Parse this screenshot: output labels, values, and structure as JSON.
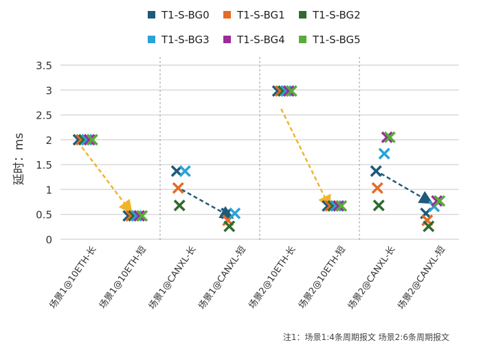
{
  "chart_data": {
    "type": "scatter",
    "ylabel": "延时：ms",
    "ylim": [
      0,
      3.5
    ],
    "yticks": [
      0,
      0.5,
      1,
      1.5,
      2,
      2.5,
      3,
      3.5
    ],
    "ytick_labels": [
      "0",
      "0.5",
      "1",
      "1.5",
      "2",
      "2.5",
      "3",
      "3.5"
    ],
    "grid": true,
    "legend_position": "top-center",
    "marker": "x",
    "categories": [
      "场景1@10ETH-长",
      "场景1@10ETH-短",
      "场景1@CANXL-长",
      "场景1@CANXL-短",
      "场景2@10ETH-长",
      "场景2@10ETH-短",
      "场景2@CANXL-长",
      "场景2@CANXL-短"
    ],
    "series": [
      {
        "name": "T1-S-BG0",
        "color": "#1f5a7a",
        "values": [
          2.0,
          0.47,
          1.37,
          0.52,
          2.98,
          0.67,
          1.37,
          0.52
        ]
      },
      {
        "name": "T1-S-BG1",
        "color": "#e36c28",
        "values": [
          2.0,
          0.47,
          1.03,
          0.38,
          2.98,
          0.67,
          1.03,
          0.38
        ]
      },
      {
        "name": "T1-S-BG2",
        "color": "#2e6b2e",
        "values": [
          2.0,
          0.47,
          0.68,
          0.26,
          2.98,
          0.67,
          0.68,
          0.26
        ]
      },
      {
        "name": "T1-S-BG3",
        "color": "#29a3d9",
        "values": [
          2.0,
          0.47,
          1.37,
          0.52,
          2.98,
          0.67,
          1.72,
          0.66
        ]
      },
      {
        "name": "T1-S-BG4",
        "color": "#9b2d9b",
        "values": [
          2.0,
          0.47,
          null,
          null,
          2.98,
          0.67,
          2.05,
          0.77
        ]
      },
      {
        "name": "T1-S-BG5",
        "color": "#5aab3a",
        "values": [
          2.0,
          0.47,
          null,
          null,
          2.98,
          0.67,
          2.05,
          0.77
        ]
      }
    ],
    "arrows": [
      {
        "from": {
          "category": 0,
          "y": 1.85
        },
        "to": {
          "category": 1,
          "y": 0.62
        },
        "color": "#f0b429"
      },
      {
        "from": {
          "category": 2,
          "y": 1.0
        },
        "to": {
          "category": 3,
          "y": 0.48
        },
        "color": "#1f5a7a"
      },
      {
        "from": {
          "category": 4,
          "y": 2.62
        },
        "to": {
          "category": 5,
          "y": 0.73
        },
        "color": "#f0b429"
      },
      {
        "from": {
          "category": 6,
          "y": 1.32
        },
        "to": {
          "category": 7,
          "y": 0.78
        },
        "color": "#1f5a7a"
      }
    ],
    "group_separators_after_category": [
      1,
      3,
      5
    ],
    "footnote": "注1：场景1:4条周期报文 场景2:6条周期报文"
  }
}
